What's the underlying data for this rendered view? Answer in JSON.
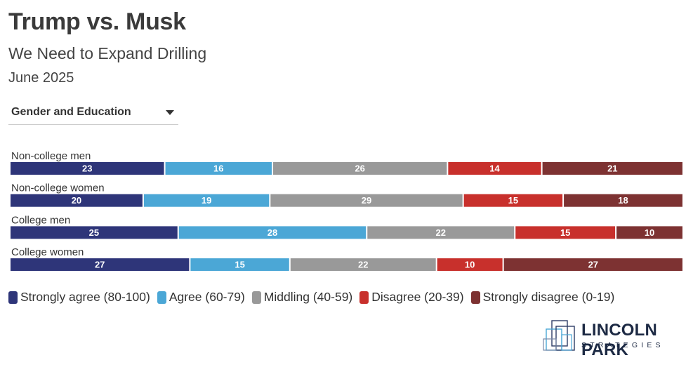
{
  "header": {
    "title": "Trump vs. Musk",
    "subtitle": "We Need to Expand Drilling",
    "date": "June 2025"
  },
  "filter": {
    "selected": "Gender and Education"
  },
  "chart_data": {
    "type": "bar",
    "orientation": "horizontal",
    "stacked": true,
    "categories": [
      "Non-college men",
      "Non-college women",
      "College men",
      "College women"
    ],
    "series": [
      {
        "name": "Strongly agree (80-100)",
        "color": "#2e3579",
        "values": [
          23,
          20,
          25,
          27
        ]
      },
      {
        "name": "Agree (60-79)",
        "color": "#4ba7d6",
        "values": [
          16,
          19,
          28,
          15
        ]
      },
      {
        "name": "Middling (40-59)",
        "color": "#999999",
        "values": [
          26,
          29,
          22,
          22
        ]
      },
      {
        "name": "Disagree (20-39)",
        "color": "#c8302c",
        "values": [
          14,
          15,
          15,
          10
        ]
      },
      {
        "name": "Strongly disagree (0-19)",
        "color": "#7d3232",
        "values": [
          21,
          18,
          10,
          27
        ]
      }
    ],
    "legend_position": "bottom"
  },
  "logo": {
    "line1": "LINCOLN PARK",
    "line2": "STRATEGIES"
  }
}
